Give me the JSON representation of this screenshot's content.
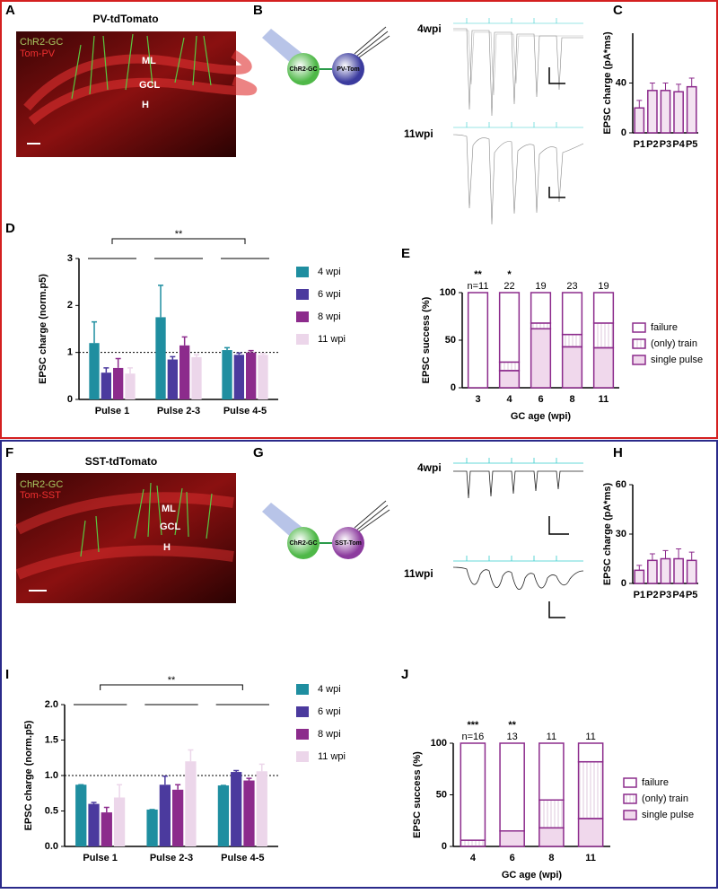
{
  "images": [
    {
      "panel": "A",
      "title": "PV-tdTomato",
      "labels": [
        "ChR2-GC",
        "Tom-PV",
        "ML",
        "GCL",
        "H"
      ]
    },
    {
      "panel": "F",
      "title": "SST-tdTomato",
      "labels": [
        "ChR2-GC",
        "Tom-SST",
        "ML",
        "GCL",
        "H"
      ]
    }
  ],
  "schematics": [
    {
      "panel": "B",
      "cells": [
        "ChR2-GC",
        "PV-Tom"
      ],
      "traces": [
        "4wpi",
        "11wpi"
      ]
    },
    {
      "panel": "G",
      "cells": [
        "ChR2-GC",
        "SST-Tom"
      ],
      "traces": [
        "4wpi",
        "11wpi"
      ]
    }
  ],
  "chart_data": [
    {
      "type": "bar",
      "panel": "C",
      "ylabel": "EPSC charge (pA*ms)",
      "categories": [
        "P1",
        "P2",
        "P3",
        "P4",
        "P5"
      ],
      "values": [
        20,
        34,
        34,
        33,
        37
      ],
      "errors": [
        6,
        6,
        6,
        6,
        7
      ],
      "color": "#f3e3f1",
      "edgecolor": "#8c2b8c",
      "ylim": [
        0,
        80
      ],
      "yticks": [
        0,
        40
      ]
    },
    {
      "type": "grouped_bar",
      "panel": "D",
      "ylabel": "EPSC charge (norm.p5)",
      "categories": [
        "Pulse 1",
        "Pulse 2-3",
        "Pulse 4-5"
      ],
      "series": [
        {
          "name": "4 wpi",
          "color": "#1f8ea0",
          "values": [
            1.2,
            1.75,
            1.05
          ],
          "errors": [
            0.45,
            0.68,
            0.05
          ]
        },
        {
          "name": "6 wpi",
          "color": "#4b3a9e",
          "values": [
            0.57,
            0.85,
            0.95
          ],
          "errors": [
            0.1,
            0.06,
            0.04
          ]
        },
        {
          "name": "8 wpi",
          "color": "#8c2b8c",
          "values": [
            0.67,
            1.15,
            1.0
          ],
          "errors": [
            0.2,
            0.18,
            0.04
          ]
        },
        {
          "name": "11 wpi",
          "color": "#ecd6ea",
          "values": [
            0.55,
            0.9,
            0.95
          ],
          "errors": [
            0.12,
            0.05,
            0.03
          ]
        }
      ],
      "ylim": [
        0,
        3
      ],
      "yticks": [
        0,
        1,
        2,
        3
      ],
      "hline": 1,
      "annotation": "**"
    },
    {
      "type": "stacked_bar",
      "panel": "E",
      "ylabel": "EPSC success (%)",
      "xlabel": "GC age (wpi)",
      "categories": [
        "3",
        "4",
        "6",
        "8",
        "11"
      ],
      "series": [
        {
          "name": "single pulse",
          "color": "#f0d8ec",
          "values": [
            0,
            18,
            62,
            43,
            42
          ]
        },
        {
          "name": "(only) train",
          "color": "#ffffff",
          "hatch": true,
          "values": [
            0,
            9,
            6,
            13,
            26
          ]
        },
        {
          "name": "failure",
          "color": "#ffffff",
          "values": [
            100,
            73,
            32,
            44,
            32
          ]
        }
      ],
      "edgecolor": "#8c2b8c",
      "n_labels": [
        "n=11",
        "22",
        "19",
        "23",
        "19"
      ],
      "stars": [
        "**",
        "*",
        null,
        null,
        null
      ],
      "ylim": [
        0,
        100
      ],
      "yticks": [
        0,
        50,
        100
      ]
    },
    {
      "type": "bar",
      "panel": "H",
      "ylabel": "EPSC charge (pA*ms)",
      "categories": [
        "P1",
        "P2",
        "P3",
        "P4",
        "P5"
      ],
      "values": [
        8,
        14,
        15,
        15,
        14
      ],
      "errors": [
        3,
        4,
        5,
        6,
        5
      ],
      "color": "#f3e3f1",
      "edgecolor": "#8c2b8c",
      "ylim": [
        0,
        60
      ],
      "yticks": [
        0,
        30,
        60
      ]
    },
    {
      "type": "grouped_bar",
      "panel": "I",
      "ylabel": "EPSC charge (norm.p5)",
      "categories": [
        "Pulse 1",
        "Pulse 2-3",
        "Pulse 4-5"
      ],
      "series": [
        {
          "name": "4 wpi",
          "color": "#1f8ea0",
          "values": [
            0.87,
            0.52,
            0.86
          ],
          "errors": [
            0,
            0,
            0
          ]
        },
        {
          "name": "6 wpi",
          "color": "#4b3a9e",
          "values": [
            0.6,
            0.87,
            1.05
          ],
          "errors": [
            0.02,
            0.12,
            0.02
          ]
        },
        {
          "name": "8 wpi",
          "color": "#8c2b8c",
          "values": [
            0.48,
            0.8,
            0.93
          ],
          "errors": [
            0.07,
            0.07,
            0.03
          ]
        },
        {
          "name": "11 wpi",
          "color": "#ecd6ea",
          "values": [
            0.69,
            1.2,
            1.06
          ],
          "errors": [
            0.18,
            0.16,
            0.1
          ]
        }
      ],
      "ylim": [
        0,
        2
      ],
      "yticks": [
        {
          "value": 0,
          "label": "0.0"
        },
        0.5,
        {
          "value": 1,
          "label": "1.0"
        },
        1.5,
        {
          "value": 2,
          "label": "2.0"
        }
      ],
      "hline": 1,
      "annotation": "**"
    },
    {
      "type": "stacked_bar",
      "panel": "J",
      "ylabel": "EPSC success (%)",
      "xlabel": "GC age (wpi)",
      "categories": [
        "4",
        "6",
        "8",
        "11"
      ],
      "series": [
        {
          "name": "single pulse",
          "color": "#f0d8ec",
          "values": [
            0,
            15,
            18,
            27
          ]
        },
        {
          "name": "(only) train",
          "color": "#ffffff",
          "hatch": true,
          "values": [
            6,
            0,
            27,
            55
          ]
        },
        {
          "name": "failure",
          "color": "#ffffff",
          "values": [
            94,
            85,
            55,
            18
          ]
        }
      ],
      "edgecolor": "#8c2b8c",
      "n_labels": [
        "n=16",
        "13",
        "11",
        "11"
      ],
      "stars": [
        "***",
        "**",
        null,
        null
      ],
      "ylim": [
        0,
        100
      ],
      "yticks": [
        0,
        50,
        100
      ]
    }
  ]
}
